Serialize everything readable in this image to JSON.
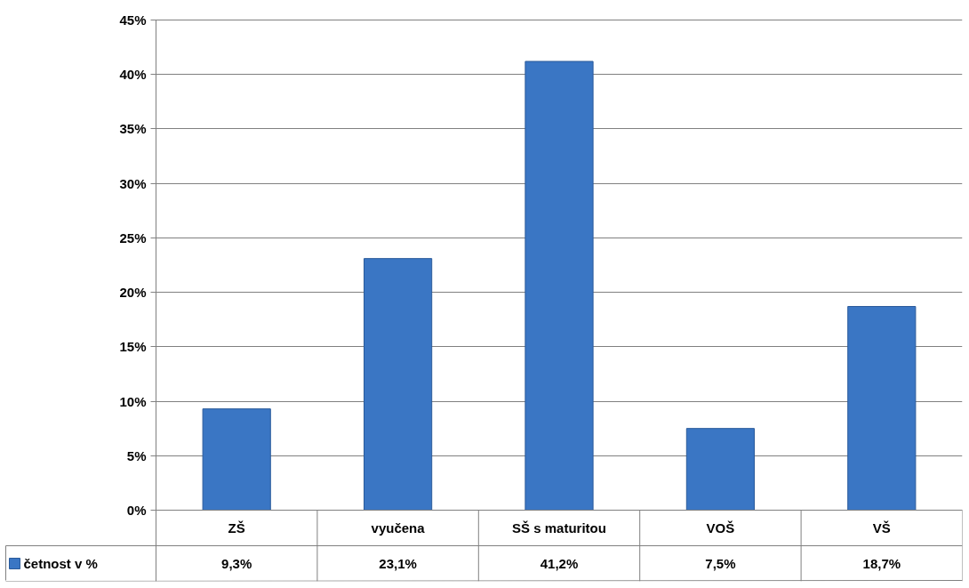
{
  "chart_data": {
    "type": "bar",
    "categories": [
      "ZŠ",
      "vyučena",
      "SŠ s maturitou",
      "VOŠ",
      "VŠ"
    ],
    "series": [
      {
        "name": "četnost v %",
        "color": "#3a76c4",
        "values": [
          9.3,
          23.1,
          41.2,
          7.5,
          18.7
        ],
        "value_labels": [
          "9,3%",
          "23,1%",
          "41,2%",
          "7,5%",
          "18,7%"
        ]
      }
    ],
    "ylim": [
      0,
      45
    ],
    "yticks": [
      {
        "value": 0,
        "label": "0%"
      },
      {
        "value": 5,
        "label": "5%"
      },
      {
        "value": 10,
        "label": "10%"
      },
      {
        "value": 15,
        "label": "15%"
      },
      {
        "value": 20,
        "label": "20%"
      },
      {
        "value": 25,
        "label": "25%"
      },
      {
        "value": 30,
        "label": "30%"
      },
      {
        "value": 35,
        "label": "35%"
      },
      {
        "value": 40,
        "label": "40%"
      },
      {
        "value": 45,
        "label": "45%"
      }
    ],
    "grid": "y",
    "tick_labels": "y"
  }
}
